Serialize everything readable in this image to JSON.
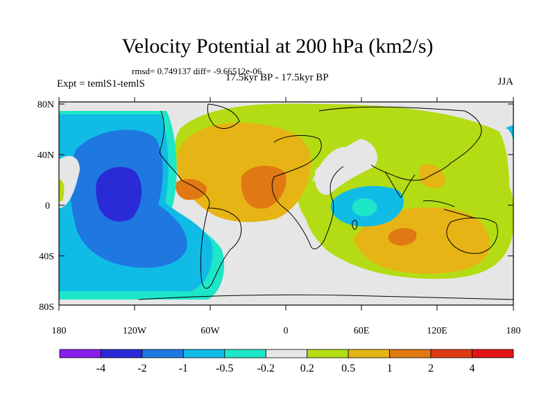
{
  "header": {
    "title": "Velocity Potential at 200 hPa (km2/s)",
    "stats": "rmsd= 0.749137 diff= -9.66512e-06",
    "expt": "Expt = temlS1-temlS",
    "period": "17.5kyr BP - 17.5kyr BP",
    "season": "JJA"
  },
  "axes": {
    "lat_labels": [
      "80N",
      "40N",
      "0",
      "40S",
      "80S"
    ],
    "lon_labels": [
      "180",
      "120W",
      "60W",
      "0",
      "60E",
      "120E",
      "180"
    ]
  },
  "colorbar": {
    "labels": [
      "-4",
      "-2",
      "-1",
      "-0.5",
      "-0.2",
      "0.2",
      "0.5",
      "1",
      "2",
      "4"
    ],
    "colors": [
      "#8a1ee8",
      "#2a2ad6",
      "#1e78e0",
      "#10bce6",
      "#1ee6c8",
      "#e6e6e6",
      "#b4dc14",
      "#e6b414",
      "#e07814",
      "#e03c14",
      "#e01414"
    ]
  }
}
